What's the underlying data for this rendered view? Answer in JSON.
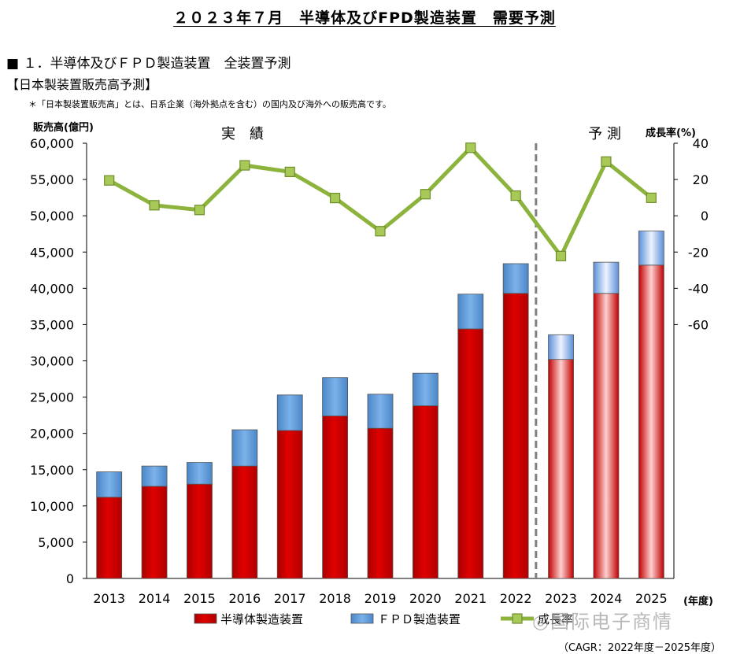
{
  "page": {
    "title": "２０２３年７月　半導体及びFPD製造装置　需要予測",
    "section_heading": "■ １．半導体及びＦＰＤ製造装置　全装置予測",
    "sub_heading": "【日本製装置販売高予測】",
    "footnote": "＊「日本製装置販売高」とは、日系企業（海外拠点を含む）の国内及び海外への販売高です。",
    "cagr_note": "（CAGR：2022年度－2025年度）",
    "watermark": "◎国际电子商情"
  },
  "chart_data": {
    "type": "bar",
    "stacked": true,
    "categories": [
      "2013",
      "2014",
      "2015",
      "2016",
      "2017",
      "2018",
      "2019",
      "2020",
      "2021",
      "2022",
      "2023",
      "2024",
      "2025"
    ],
    "ylabel": "販売高(億円)",
    "y2label": "成長率(%)",
    "xunit": "(年度)",
    "ylim": [
      0,
      60000
    ],
    "yticks": [
      0,
      5000,
      10000,
      15000,
      20000,
      25000,
      30000,
      35000,
      40000,
      45000,
      50000,
      55000,
      60000
    ],
    "yticklabels": [
      "0",
      "5,000",
      "10,000",
      "15,000",
      "20,000",
      "25,000",
      "30,000",
      "35,000",
      "40,000",
      "45,000",
      "50,000",
      "55,000",
      "60,000"
    ],
    "y2lim": [
      -200,
      40
    ],
    "y2ticks": [
      40,
      20,
      0,
      -20,
      -40,
      -60
    ],
    "y2ticklabels": [
      "40",
      "20",
      "0",
      "-20",
      "-40",
      "-60"
    ],
    "actual_label": "実　績",
    "forecast_label": "予 測",
    "forecast_start_index": 10,
    "series": [
      {
        "name": "半導体製造装置",
        "kind": "bar",
        "color": "#cc0000",
        "values": [
          11200,
          12700,
          13000,
          15500,
          20400,
          22400,
          20700,
          23800,
          34400,
          39300,
          30200,
          39300,
          43200
        ]
      },
      {
        "name": "ＦＰＤ製造装置",
        "kind": "bar",
        "color": "#5b9bd5",
        "values": [
          3500,
          2800,
          3000,
          5000,
          4900,
          5300,
          4700,
          4500,
          4800,
          4100,
          3400,
          4300,
          4700
        ]
      },
      {
        "name": "成長率",
        "kind": "line",
        "axis": "right",
        "color": "#8cb43c",
        "values": [
          19.5,
          5.8,
          3.2,
          27.8,
          24.2,
          9.8,
          -8.5,
          11.9,
          37.5,
          11.1,
          -22.2,
          29.9,
          9.9
        ]
      }
    ],
    "legend_position": "bottom",
    "grid": false,
    "colors": {
      "forecast_bar_light": "#ffc8c8",
      "forecast_fpd_light": "#dde8ff",
      "divider": "#808080"
    }
  }
}
